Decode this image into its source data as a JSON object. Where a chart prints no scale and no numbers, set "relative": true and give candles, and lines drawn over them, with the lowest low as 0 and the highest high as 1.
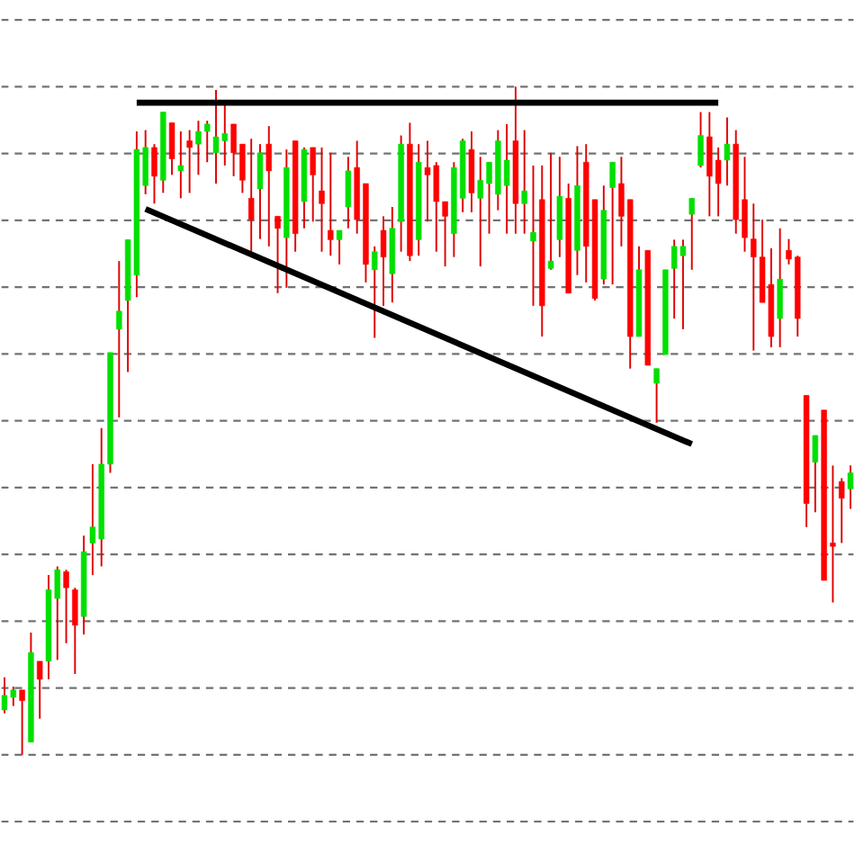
{
  "chart_data": {
    "type": "candlestick",
    "relative": true,
    "grid": "y",
    "color": "#e00000",
    "categories": [
      null,
      null,
      null,
      null,
      null,
      null,
      null,
      null,
      null,
      null,
      null,
      null,
      null,
      null,
      null,
      null,
      null,
      null,
      null,
      null,
      null,
      null,
      null,
      null,
      null,
      null,
      null,
      null,
      null,
      null,
      null,
      null,
      null,
      null,
      null,
      null,
      null,
      null,
      null,
      null,
      null,
      null,
      null,
      null,
      null,
      null,
      null,
      null,
      null,
      null,
      null,
      null,
      null,
      null,
      null,
      null,
      null,
      null,
      null,
      null,
      null,
      null,
      null,
      null,
      null,
      null,
      null,
      null,
      null,
      null,
      null,
      null,
      null,
      null,
      null,
      null,
      null,
      null,
      null,
      null,
      null,
      null,
      null,
      null,
      null,
      null,
      null,
      null,
      null,
      null,
      null,
      null,
      null,
      null,
      null,
      null,
      null
    ],
    "ohlc": [
      [
        0.067,
        0.116,
        0.062,
        0.089
      ],
      [
        0.086,
        0.102,
        0.073,
        0.097
      ],
      [
        0.097,
        0.097,
        0.0,
        0.081
      ],
      [
        0.019,
        0.183,
        0.019,
        0.153
      ],
      [
        0.14,
        0.14,
        0.054,
        0.113
      ],
      [
        0.14,
        0.269,
        0.113,
        0.247
      ],
      [
        0.234,
        0.282,
        0.142,
        0.277
      ],
      [
        0.274,
        0.277,
        0.167,
        0.25
      ],
      [
        0.247,
        0.25,
        0.121,
        0.194
      ],
      [
        0.207,
        0.328,
        0.18,
        0.304
      ],
      [
        0.317,
        0.435,
        0.269,
        0.341
      ],
      [
        0.323,
        0.489,
        0.282,
        0.435
      ],
      [
        0.435,
        0.602,
        0.422,
        0.602
      ],
      [
        0.637,
        0.739,
        0.505,
        0.664
      ],
      [
        0.68,
        0.771,
        0.573,
        0.771
      ],
      [
        0.718,
        0.933,
        0.685,
        0.906
      ],
      [
        0.852,
        0.935,
        0.839,
        0.909
      ],
      [
        0.909,
        0.914,
        0.825,
        0.866
      ],
      [
        0.86,
        0.962,
        0.841,
        0.962
      ],
      [
        0.946,
        0.946,
        0.868,
        0.892
      ],
      [
        0.874,
        0.933,
        0.833,
        0.882
      ],
      [
        0.919,
        0.935,
        0.841,
        0.909
      ],
      [
        0.914,
        0.949,
        0.868,
        0.933
      ],
      [
        0.933,
        0.949,
        0.887,
        0.944
      ],
      [
        0.901,
        0.995,
        0.855,
        0.925
      ],
      [
        0.919,
        0.973,
        0.882,
        0.93
      ],
      [
        0.944,
        0.944,
        0.866,
        0.901
      ],
      [
        0.914,
        0.914,
        0.841,
        0.86
      ],
      [
        0.833,
        0.922,
        0.753,
        0.801
      ],
      [
        0.847,
        0.914,
        0.772,
        0.901
      ],
      [
        0.914,
        0.941,
        0.761,
        0.874
      ],
      [
        0.806,
        0.806,
        0.691,
        0.788
      ],
      [
        0.774,
        0.906,
        0.699,
        0.879
      ],
      [
        0.919,
        0.919,
        0.753,
        0.78
      ],
      [
        0.828,
        0.909,
        0.788,
        0.906
      ],
      [
        0.909,
        0.909,
        0.798,
        0.868
      ],
      [
        0.844,
        0.909,
        0.753,
        0.825
      ],
      [
        0.785,
        0.901,
        0.747,
        0.771
      ],
      [
        0.771,
        0.785,
        0.734,
        0.785
      ],
      [
        0.82,
        0.895,
        0.788,
        0.874
      ],
      [
        0.879,
        0.919,
        0.78,
        0.801
      ],
      [
        0.855,
        0.855,
        0.707,
        0.734
      ],
      [
        0.726,
        0.761,
        0.624,
        0.753
      ],
      [
        0.785,
        0.806,
        0.672,
        0.745
      ],
      [
        0.72,
        0.82,
        0.677,
        0.788
      ],
      [
        0.798,
        0.927,
        0.753,
        0.914
      ],
      [
        0.914,
        0.946,
        0.739,
        0.747
      ],
      [
        0.771,
        0.914,
        0.747,
        0.887
      ],
      [
        0.879,
        0.919,
        0.798,
        0.868
      ],
      [
        0.882,
        0.887,
        0.753,
        0.828
      ],
      [
        0.828,
        0.828,
        0.731,
        0.806
      ],
      [
        0.78,
        0.887,
        0.745,
        0.879
      ],
      [
        0.833,
        0.922,
        0.812,
        0.919
      ],
      [
        0.906,
        0.933,
        0.812,
        0.841
      ],
      [
        0.833,
        0.895,
        0.731,
        0.86
      ],
      [
        0.855,
        0.887,
        0.78,
        0.887
      ],
      [
        0.839,
        0.935,
        0.815,
        0.919
      ],
      [
        0.852,
        0.944,
        0.78,
        0.89
      ],
      [
        0.919,
        1.0,
        0.78,
        0.825
      ],
      [
        0.825,
        0.935,
        0.78,
        0.844
      ],
      [
        0.769,
        0.882,
        0.672,
        0.782
      ],
      [
        0.831,
        0.882,
        0.626,
        0.672
      ],
      [
        0.728,
        0.901,
        0.726,
        0.739
      ],
      [
        0.771,
        0.895,
        0.745,
        0.836
      ],
      [
        0.833,
        0.855,
        0.691,
        0.691
      ],
      [
        0.755,
        0.911,
        0.718,
        0.852
      ],
      [
        0.887,
        0.914,
        0.707,
        0.761
      ],
      [
        0.831,
        0.831,
        0.68,
        0.683
      ],
      [
        0.712,
        0.852,
        0.704,
        0.815
      ],
      [
        0.849,
        0.887,
        0.704,
        0.887
      ],
      [
        0.855,
        0.895,
        0.761,
        0.806
      ],
      [
        0.831,
        0.831,
        0.578,
        0.626
      ],
      [
        0.626,
        0.761,
        0.626,
        0.726
      ],
      [
        0.755,
        0.755,
        0.583,
        0.583
      ],
      [
        0.556,
        0.578,
        0.497,
        0.578
      ],
      [
        0.599,
        0.726,
        0.599,
        0.726
      ],
      [
        0.728,
        0.771,
        0.653,
        0.761
      ],
      [
        0.747,
        0.771,
        0.637,
        0.761
      ],
      [
        0.809,
        0.833,
        0.726,
        0.833
      ],
      [
        0.882,
        0.962,
        0.879,
        0.927
      ],
      [
        0.925,
        0.962,
        0.806,
        0.866
      ],
      [
        0.89,
        0.909,
        0.806,
        0.855
      ],
      [
        0.89,
        0.954,
        0.852,
        0.914
      ],
      [
        0.914,
        0.935,
        0.78,
        0.801
      ],
      [
        0.831,
        0.895,
        0.753,
        0.774
      ],
      [
        0.772,
        0.825,
        0.605,
        0.745
      ],
      [
        0.745,
        0.801,
        0.677,
        0.677
      ],
      [
        0.704,
        0.758,
        0.61,
        0.626
      ],
      [
        0.653,
        0.788,
        0.61,
        0.712
      ],
      [
        0.755,
        0.772,
        0.734,
        0.742
      ],
      [
        0.745,
        0.747,
        0.626,
        0.653
      ],
      [
        0.538,
        0.538,
        0.341,
        0.376
      ],
      [
        0.438,
        0.478,
        0.363,
        0.478
      ],
      [
        0.516,
        0.516,
        0.261,
        0.261
      ],
      [
        0.317,
        0.433,
        0.228,
        0.312
      ],
      [
        0.409,
        0.414,
        0.317,
        0.384
      ],
      [
        0.398,
        0.433,
        0.368,
        0.422
      ]
    ],
    "colors": [
      "#00e000",
      "#00e000",
      "#ff0000",
      "#00e000",
      "#ff0000",
      "#00e000",
      "#00e000",
      "#ff0000",
      "#ff0000",
      "#00e000",
      "#00e000",
      "#00e000",
      "#00e000",
      "#00e000",
      "#00e000",
      "#00e000",
      "#00e000",
      "#ff0000",
      "#00e000",
      "#ff0000",
      "#00e000",
      "#ff0000",
      "#00e000",
      "#00e000",
      "#00e000",
      "#00e000",
      "#ff0000",
      "#ff0000",
      "#ff0000",
      "#00e000",
      "#ff0000",
      "#ff0000",
      "#00e000",
      "#ff0000",
      "#00e000",
      "#ff0000",
      "#ff0000",
      "#ff0000",
      "#00e000",
      "#00e000",
      "#ff0000",
      "#ff0000",
      "#00e000",
      "#ff0000",
      "#00e000",
      "#00e000",
      "#ff0000",
      "#00e000",
      "#ff0000",
      "#ff0000",
      "#ff0000",
      "#00e000",
      "#00e000",
      "#ff0000",
      "#00e000",
      "#00e000",
      "#00e000",
      "#00e000",
      "#ff0000",
      "#00e000",
      "#00e000",
      "#ff0000",
      "#00e000",
      "#00e000",
      "#ff0000",
      "#00e000",
      "#ff0000",
      "#ff0000",
      "#00e000",
      "#00e000",
      "#ff0000",
      "#ff0000",
      "#00e000",
      "#ff0000",
      "#00e000",
      "#00e000",
      "#00e000",
      "#00e000",
      "#00e000",
      "#00e000",
      "#ff0000",
      "#ff0000",
      "#00e000",
      "#ff0000",
      "#ff0000",
      "#ff0000",
      "#ff0000",
      "#ff0000",
      "#00e000",
      "#ff0000",
      "#ff0000",
      "#ff0000",
      "#00e000",
      "#ff0000",
      "#ff0000",
      "#ff0000",
      "#00e000"
    ],
    "series": [
      {
        "type": "line",
        "color": "#000000",
        "values": [
          null,
          null,
          null,
          null,
          null,
          null,
          null,
          null,
          null,
          null,
          null,
          null,
          null,
          null,
          null,
          0.976,
          null,
          null,
          null,
          null,
          null,
          null,
          null,
          null,
          null,
          null,
          null,
          null,
          null,
          null,
          null,
          null,
          null,
          null,
          null,
          null,
          null,
          null,
          null,
          null,
          null,
          null,
          null,
          null,
          null,
          null,
          null,
          null,
          null,
          null,
          null,
          null,
          null,
          null,
          null,
          null,
          null,
          null,
          null,
          null,
          null,
          null,
          null,
          null,
          null,
          null,
          null,
          null,
          null,
          null,
          null,
          null,
          null,
          null,
          null,
          null,
          null,
          null,
          null,
          null,
          null,
          0.976,
          null,
          null,
          null,
          null,
          null,
          null,
          null,
          null,
          null,
          null,
          null,
          null,
          null,
          null,
          null
        ]
      },
      {
        "type": "line",
        "color": "#000000",
        "values": [
          null,
          null,
          null,
          null,
          null,
          null,
          null,
          null,
          null,
          null,
          null,
          null,
          null,
          null,
          null,
          null,
          0.817,
          null,
          null,
          null,
          null,
          null,
          null,
          null,
          null,
          null,
          null,
          null,
          null,
          null,
          null,
          null,
          null,
          null,
          null,
          null,
          null,
          null,
          null,
          null,
          null,
          null,
          null,
          null,
          null,
          null,
          null,
          null,
          null,
          null,
          null,
          null,
          null,
          null,
          null,
          null,
          null,
          null,
          null,
          null,
          null,
          null,
          null,
          null,
          null,
          null,
          null,
          null,
          null,
          null,
          null,
          null,
          null,
          null,
          null,
          null,
          null,
          null,
          0.465,
          null,
          null,
          null,
          null,
          null,
          null,
          null,
          null,
          null,
          null,
          null,
          null,
          null,
          null,
          null,
          null,
          null,
          null
        ]
      }
    ]
  }
}
